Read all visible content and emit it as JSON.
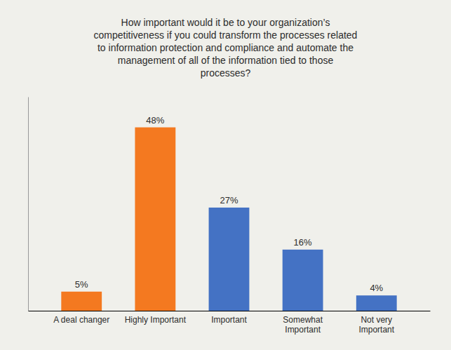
{
  "chart_data": {
    "type": "bar",
    "title": "How important would it be to your organization’s\ncompetitiveness if you could transform the processes related\nto information protection and compliance and automate the\nmanagement of all of the information tied to those\nprocesses?",
    "categories": [
      "A deal changer",
      "Highly Important",
      "Important",
      "Somewhat\nImportant",
      "Not very\nImportant"
    ],
    "values": [
      5,
      48,
      27,
      16,
      4
    ],
    "value_labels": [
      "5%",
      "48%",
      "27%",
      "16%",
      "4%"
    ],
    "colors": [
      "#F47920",
      "#F47920",
      "#4472C4",
      "#4472C4",
      "#4472C4"
    ],
    "ylim": [
      0,
      56
    ],
    "data_labels": true,
    "tick_labels": "x"
  }
}
